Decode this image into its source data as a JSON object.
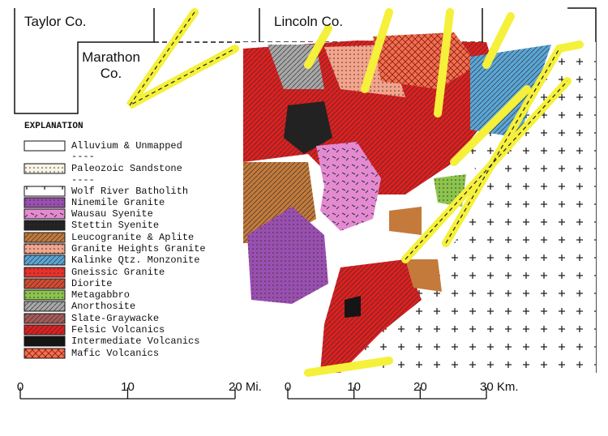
{
  "map_labels": {
    "taylor": "Taylor Co.",
    "lincoln": "Lincoln Co.",
    "marathon": [
      "Marathon",
      "Co."
    ]
  },
  "legend": {
    "title": "EXPLANATION",
    "items": [
      {
        "label": "Alluvium & Unmapped",
        "color": "#ffffff"
      },
      {
        "label": "----"
      },
      {
        "label": "Paleozoic Sandstone",
        "color": "#faf4e6",
        "pattern": "dots"
      },
      {
        "label": "----"
      },
      {
        "label": "Wolf River Batholith",
        "color": "#ffffff",
        "pattern": "plus"
      },
      {
        "label": "Ninemile Granite",
        "color": "#9a4fb0",
        "pattern": "dots"
      },
      {
        "label": "Wausau Syenite",
        "color": "#e48ad2",
        "pattern": "dash"
      },
      {
        "label": "Stettin Syenite",
        "color": "#222222",
        "pattern": "dots"
      },
      {
        "label": "Leucogranite & Aplite",
        "color": "#c47a3a",
        "pattern": "hatch"
      },
      {
        "label": "Granite Heights Granite",
        "color": "#f4a48c",
        "pattern": "dots"
      },
      {
        "label": "Kalinke Qtz. Monzonite",
        "color": "#5aa6d8",
        "pattern": "hatch"
      },
      {
        "label": "Gneissic Granite",
        "color": "#e8302a",
        "pattern": "dots"
      },
      {
        "label": "Diorite",
        "color": "#d84a30",
        "pattern": "hatch"
      },
      {
        "label": "Metagabbro",
        "color": "#8cc44c",
        "pattern": "dots"
      },
      {
        "label": "Anorthosite",
        "color": "#a8a8a8",
        "pattern": "hatch"
      },
      {
        "label": "Slate-Graywacke",
        "color": "#a85a5a",
        "pattern": "hatch"
      },
      {
        "label": "Felsic Volcanics",
        "color": "#e01e1e",
        "pattern": "hatch"
      },
      {
        "label": "Intermediate Volcanics",
        "color": "#151515"
      },
      {
        "label": "Mafic Volcanics",
        "color": "#f07050",
        "pattern": "cross"
      }
    ]
  },
  "scale_bars": [
    {
      "labels": [
        "0",
        "10",
        "20 Mi."
      ]
    },
    {
      "labels": [
        "0",
        "10",
        "20",
        "30 Km."
      ]
    }
  ]
}
